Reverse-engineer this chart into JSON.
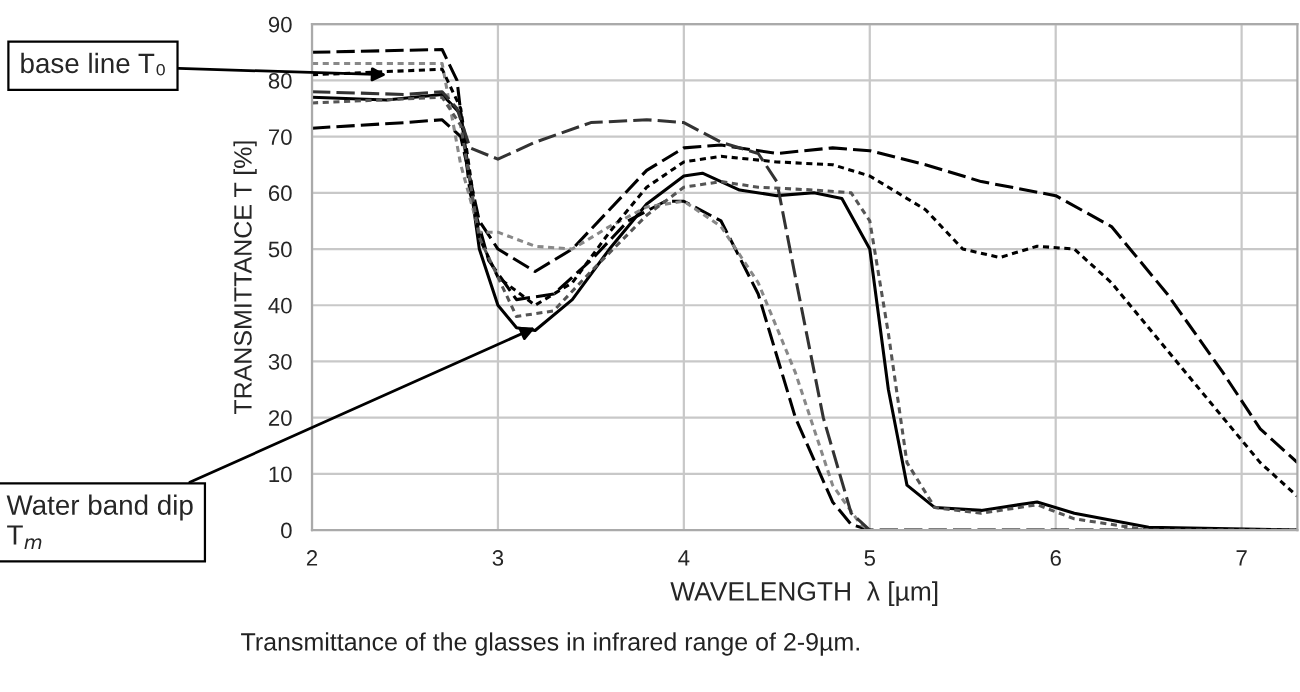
{
  "chart_data": {
    "type": "line",
    "xlabel": "WAVELENGTH  λ [µm]",
    "ylabel": "TRANSMITTANCE T [%]",
    "xlim": [
      2,
      7.3
    ],
    "ylim": [
      0,
      90
    ],
    "xticks": [
      2,
      3,
      4,
      5,
      6,
      7
    ],
    "yticks": [
      0,
      10,
      20,
      30,
      40,
      50,
      60,
      70,
      80,
      90
    ],
    "grid": true,
    "marker": "none",
    "series": [
      {
        "color": "#000000",
        "line_style": "solid",
        "x": [
          2,
          2.4,
          2.7,
          2.8,
          2.9,
          3.0,
          3.1,
          3.2,
          3.4,
          3.6,
          3.8,
          4.0,
          4.1,
          4.3,
          4.5,
          4.7,
          4.85,
          5.0,
          5.1,
          5.2,
          5.35,
          5.6,
          5.9,
          6.1,
          6.5,
          7.3
        ],
        "values": [
          77,
          76.5,
          77.5,
          74,
          50,
          40,
          36,
          35.5,
          41,
          50,
          58,
          63,
          63.5,
          60.5,
          59.5,
          60,
          59,
          50,
          25,
          8,
          4,
          3.5,
          5,
          3,
          0.5,
          0
        ]
      },
      {
        "color": "#000000",
        "line_style": "dashed",
        "x": [
          2,
          2.5,
          2.7,
          2.8,
          2.9,
          3.0,
          3.2,
          3.4,
          3.6,
          3.8,
          4.0,
          4.2,
          4.5,
          4.8,
          5.0,
          5.3,
          5.6,
          6.0,
          6.3,
          6.6,
          6.9,
          7.1,
          7.3
        ],
        "values": [
          71.5,
          72.5,
          73,
          70,
          55,
          50,
          46,
          50,
          57,
          64,
          68,
          68.5,
          67,
          68,
          67.5,
          65,
          62,
          59.5,
          54,
          42,
          28,
          18,
          12
        ]
      },
      {
        "color": "#000000",
        "line_style": "dashed",
        "x": [
          2,
          2.7,
          2.78,
          2.85,
          2.95,
          3.1,
          3.3,
          3.5,
          3.7,
          3.9,
          4.0,
          4.2,
          4.4,
          4.6,
          4.8,
          4.9,
          5.0,
          7.3
        ],
        "values": [
          85,
          85.5,
          80,
          60,
          48,
          41,
          42,
          48,
          55,
          58.5,
          58.5,
          55,
          42,
          20,
          5,
          1,
          0,
          0
        ]
      },
      {
        "color": "#888888",
        "line_style": "dotted",
        "x": [
          2,
          2.7,
          2.8,
          2.9,
          3.0,
          3.2,
          3.4,
          3.6,
          3.8,
          4.0,
          4.2,
          4.4,
          4.6,
          4.8,
          4.95,
          5.0
        ],
        "values": [
          83,
          83,
          65,
          53,
          53,
          50.5,
          50,
          54,
          57.5,
          58.5,
          54,
          44,
          28,
          8,
          1,
          0
        ]
      },
      {
        "color": "#000000",
        "line_style": "dotted",
        "x": [
          2,
          2.7,
          2.8,
          2.9,
          3.0,
          3.2,
          3.4,
          3.6,
          3.8,
          4.0,
          4.2,
          4.5,
          4.8,
          5.0,
          5.3,
          5.5,
          5.7,
          5.9,
          6.1,
          6.3,
          6.6,
          6.9,
          7.1,
          7.3
        ],
        "values": [
          81,
          82,
          75,
          52,
          45,
          40,
          44,
          53,
          61,
          65.5,
          66.5,
          65.5,
          65,
          63,
          57,
          50,
          48.5,
          50.5,
          50,
          44,
          32,
          20,
          12,
          6
        ]
      },
      {
        "color": "#333333",
        "line_style": "dashed",
        "x": [
          2,
          2.5,
          2.7,
          2.78,
          2.85,
          3.0,
          3.2,
          3.5,
          3.8,
          4.0,
          4.2,
          4.4,
          4.5,
          4.6,
          4.75,
          4.9,
          5.0
        ],
        "values": [
          78,
          77.5,
          78,
          75,
          68,
          66,
          69,
          72.5,
          73,
          72.5,
          69,
          67,
          62,
          45,
          20,
          3,
          0
        ]
      },
      {
        "color": "#555555",
        "line_style": "dotted",
        "x": [
          2,
          2.7,
          2.8,
          2.9,
          3.1,
          3.3,
          3.5,
          3.8,
          4.0,
          4.2,
          4.4,
          4.7,
          4.9,
          5.0,
          5.1,
          5.2,
          5.35,
          5.6,
          5.9,
          6.1,
          6.5,
          7.3
        ],
        "values": [
          76,
          77,
          72,
          52,
          38,
          39,
          46,
          56,
          61,
          62,
          61,
          60.5,
          60,
          55,
          35,
          12,
          4,
          3,
          4.5,
          2,
          0,
          0
        ]
      }
    ],
    "annotations": [
      {
        "text": "base line T₀",
        "x": 2.4,
        "y": 81
      },
      {
        "text": "Water band dip\nT$_{m}$",
        "x": 3.2,
        "y": 36
      },
      "Transmittance of the glasses in infrared range of 2-9µm."
    ]
  }
}
